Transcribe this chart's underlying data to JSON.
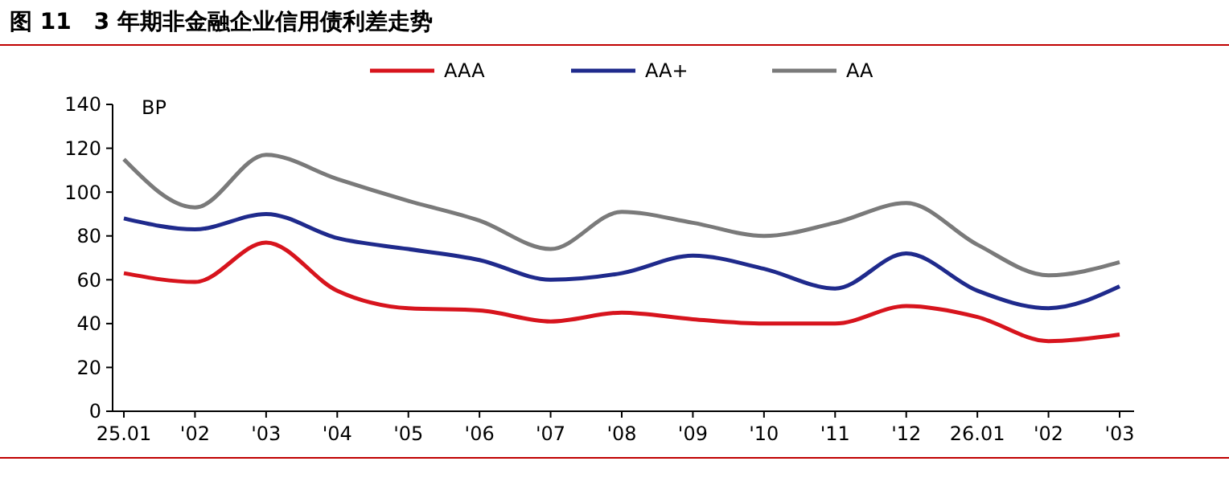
{
  "chart_data": {
    "type": "line",
    "title": "图 11　3 年期非金融企业信用债利差走势",
    "ylabel": "BP",
    "categories": [
      "25.01",
      "'02",
      "'03",
      "'04",
      "'05",
      "'06",
      "'07",
      "'08",
      "'09",
      "'10",
      "'11",
      "'12",
      "26.01",
      "'02",
      "'03"
    ],
    "series": [
      {
        "name": "AAA",
        "color": "#d7141d",
        "values": [
          63,
          59,
          77,
          55,
          47,
          46,
          41,
          45,
          42,
          40,
          40,
          48,
          43,
          32,
          35
        ]
      },
      {
        "name": "AA+",
        "color": "#1f2a8c",
        "values": [
          88,
          83,
          90,
          79,
          74,
          69,
          60,
          63,
          71,
          65,
          56,
          72,
          55,
          47,
          57
        ]
      },
      {
        "name": "AA",
        "color": "#7a7a7a",
        "values": [
          115,
          93,
          117,
          106,
          96,
          87,
          74,
          91,
          86,
          80,
          86,
          95,
          76,
          62,
          68
        ]
      }
    ],
    "ylim": [
      0,
      140
    ],
    "yticks": [
      0,
      20,
      40,
      60,
      80,
      100,
      120,
      140
    ],
    "grid": false,
    "legend": "top",
    "marker": "none",
    "line_style": "solid"
  }
}
